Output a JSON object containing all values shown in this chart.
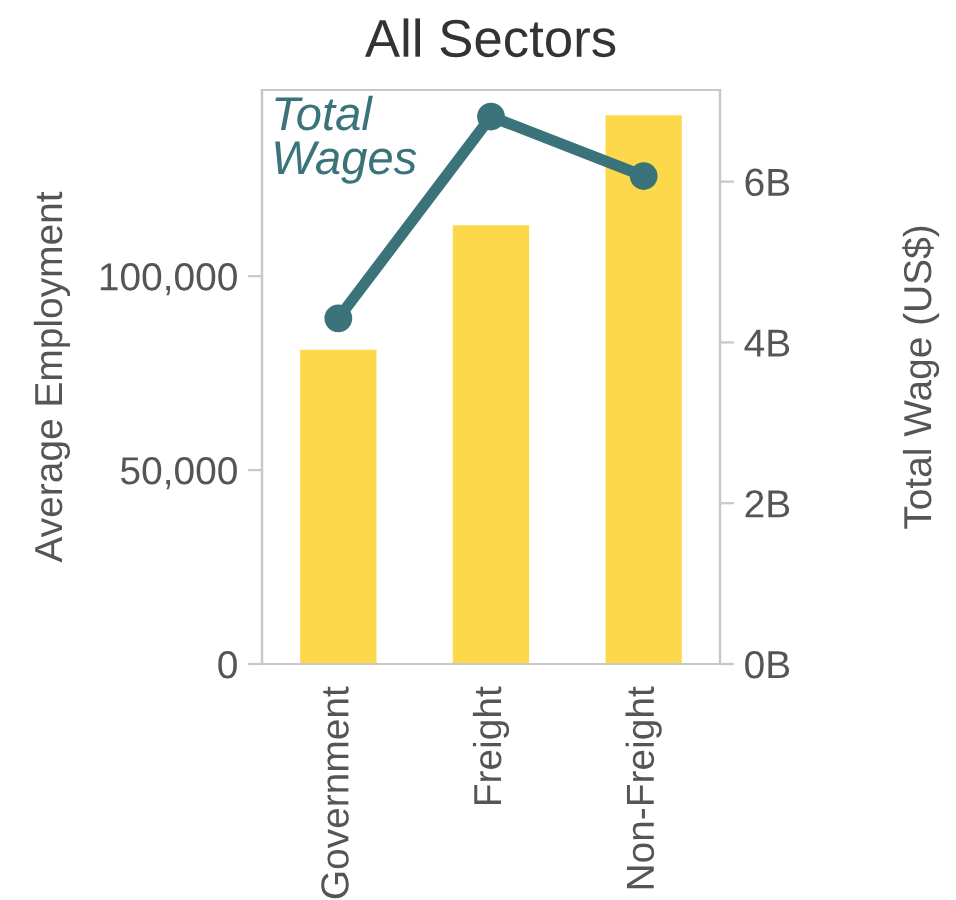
{
  "chart_data": {
    "type": "bar",
    "title": "All Sectors",
    "ylabel": "Average Employment",
    "y2label": "Total Wage (US$)",
    "categories": [
      "Government",
      "Freight",
      "Non-Freight"
    ],
    "series": [
      {
        "color": "#fdd84a",
        "values": [
          81000,
          113100,
          141500
        ]
      },
      {
        "type": "line",
        "name": "Total Wages",
        "color": "#3b737b",
        "axis": "y2",
        "values": [
          4.3,
          6.81,
          6.07
        ]
      }
    ],
    "ylim": [
      0,
      148000
    ],
    "yticks": [
      {
        "value": 0,
        "label": "0"
      },
      {
        "value": 50000,
        "label": "50,000"
      },
      {
        "value": 100000,
        "label": "100,000"
      }
    ],
    "y2lim": [
      0,
      7.14
    ],
    "y2ticks": [
      {
        "value": 0,
        "label": "0B"
      },
      {
        "value": 2,
        "label": "2B"
      },
      {
        "value": 4,
        "label": "4B"
      },
      {
        "value": 6,
        "label": "6B"
      }
    ],
    "marker": "circle",
    "line_style": "solid",
    "grid": false,
    "legend": false
  }
}
